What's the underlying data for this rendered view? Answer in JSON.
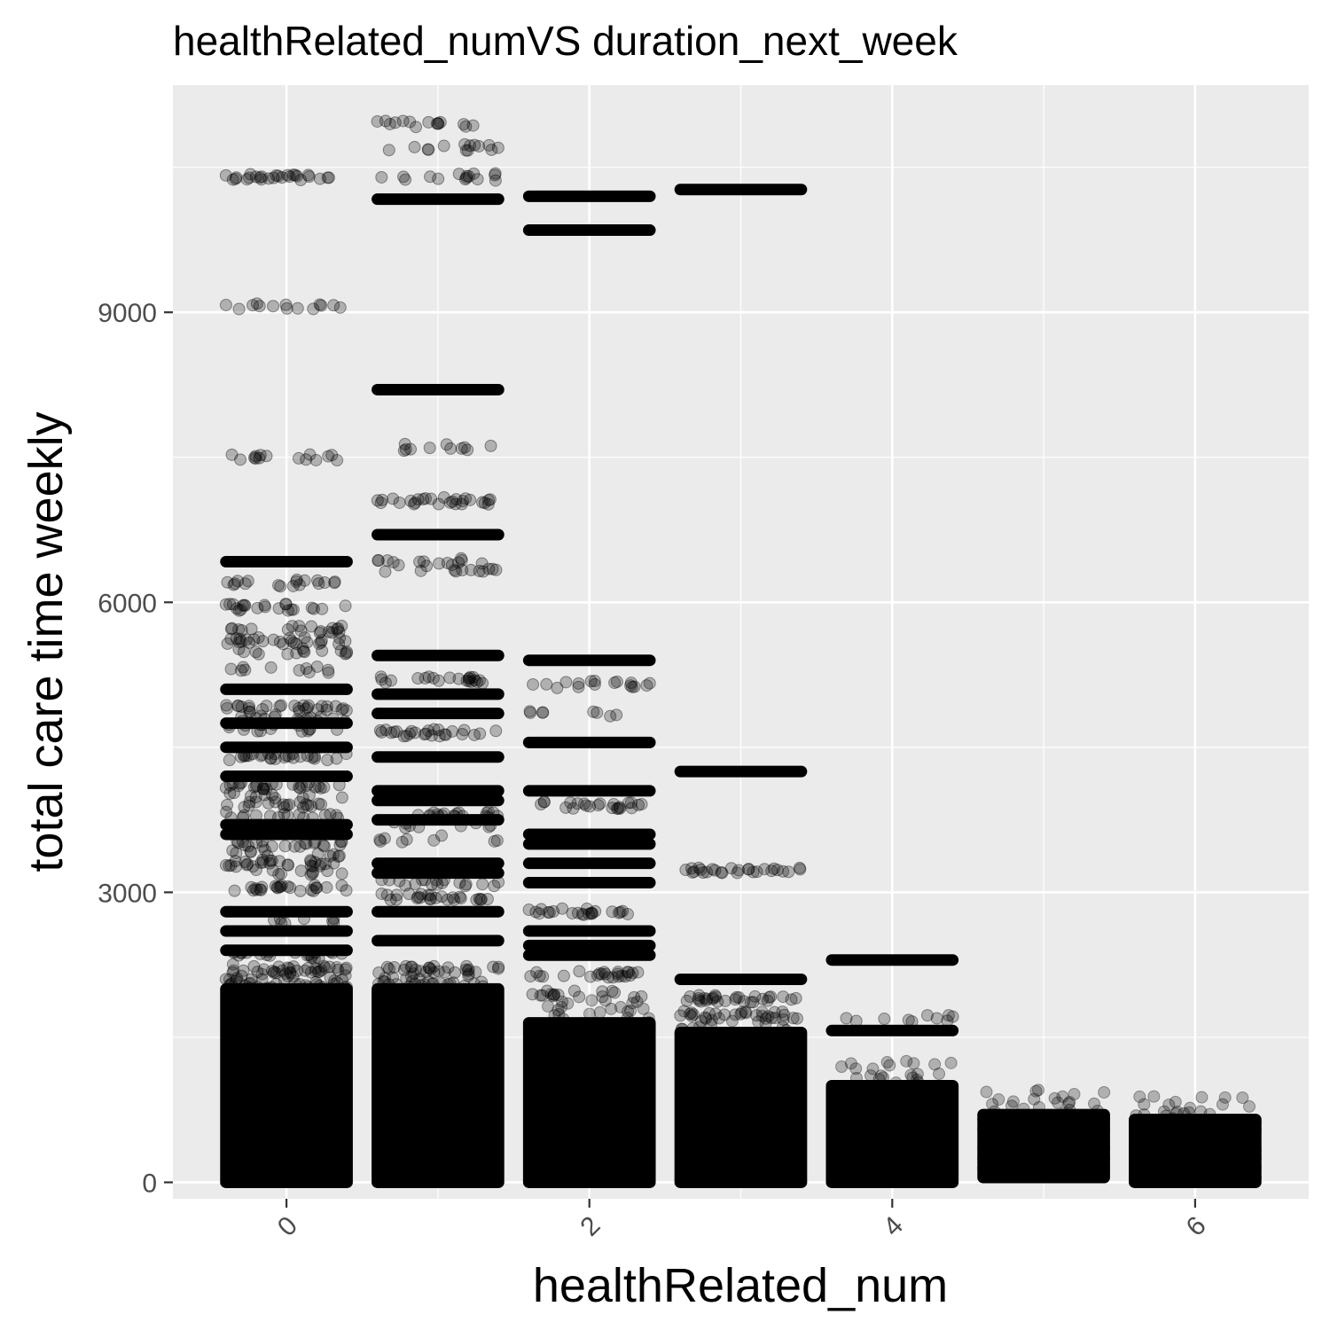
{
  "chart_data": {
    "type": "scatter",
    "title": "healthRelated_numVS duration_next_week",
    "xlabel": "healthRelated_num",
    "ylabel": "total care time weekly",
    "xlim": [
      -0.75,
      6.75
    ],
    "ylim": [
      -170,
      11350
    ],
    "x_ticks": [
      0,
      2,
      4,
      6
    ],
    "y_ticks": [
      0,
      3000,
      6000,
      9000
    ],
    "x_tick_labels": [
      "0",
      "2",
      "4",
      "6"
    ],
    "y_tick_labels": [
      "0",
      "3000",
      "6000",
      "9000"
    ],
    "x_tick_rotation": 45,
    "point_color": "#000000",
    "point_alpha": 0.25,
    "panel_color": "#ebebeb",
    "grid_color": "#ffffff",
    "grid": true,
    "legend": "none",
    "jitter_width": 0.4,
    "groups": [
      {
        "x": 0,
        "dense_range": [
          0,
          2000
        ],
        "levels": [
          10400,
          9070,
          7500,
          6420,
          6200,
          5950,
          5720,
          5600,
          5500,
          5300,
          5100,
          4900,
          4800,
          4700,
          4500,
          4400,
          4200,
          4100,
          4000,
          3900,
          3800,
          3700,
          3600,
          3500,
          3400,
          3300,
          3200,
          3050,
          2800,
          2700,
          2600,
          2400,
          2350,
          2200,
          2100,
          2050
        ],
        "solid_levels": [
          6420,
          5100,
          4750,
          4500,
          4200,
          3700,
          3600,
          2800,
          2600,
          2400
        ]
      },
      {
        "x": 1,
        "dense_range": [
          0,
          2000
        ],
        "levels": [
          10950,
          10700,
          10400,
          10170,
          8200,
          7600,
          7050,
          6700,
          6420,
          6350,
          5450,
          5200,
          5050,
          4850,
          4650,
          4400,
          4050,
          3950,
          3800,
          3700,
          3550,
          3300,
          3200,
          3100,
          2950,
          2800,
          2500,
          2200,
          2050
        ],
        "solid_levels": [
          10170,
          8200,
          6700,
          5450,
          5050,
          4850,
          4400,
          4050,
          3950,
          3750,
          3300,
          3200,
          2800,
          2500
        ]
      },
      {
        "x": 2,
        "dense_range": [
          0,
          1650
        ],
        "levels": [
          10200,
          9850,
          5400,
          5150,
          4850,
          4550,
          4050,
          3900,
          3600,
          3500,
          3300,
          3100,
          2800,
          2600,
          2450,
          2350,
          2150,
          1950
        ],
        "solid_levels": [
          10200,
          9850,
          5400,
          4550,
          4050,
          3600,
          3500,
          3300,
          3100,
          2600,
          2450,
          2350
        ]
      },
      {
        "x": 3,
        "dense_range": [
          0,
          1550
        ],
        "levels": [
          10270,
          4250,
          3220,
          2100,
          1900,
          1730
        ],
        "solid_levels": [
          10270,
          4250,
          2100
        ]
      },
      {
        "x": 4,
        "dense_range": [
          0,
          1000
        ],
        "levels": [
          2300,
          1700,
          1570
        ],
        "solid_levels": [
          2300,
          1570
        ]
      },
      {
        "x": 5,
        "dense_range": [
          50,
          700
        ],
        "levels": [],
        "solid_levels": [
          650,
          550,
          350,
          250,
          150
        ]
      },
      {
        "x": 6,
        "dense_range": [
          0,
          650
        ],
        "levels": [],
        "solid_levels": [
          620,
          550,
          330,
          250,
          150,
          50
        ]
      }
    ]
  }
}
